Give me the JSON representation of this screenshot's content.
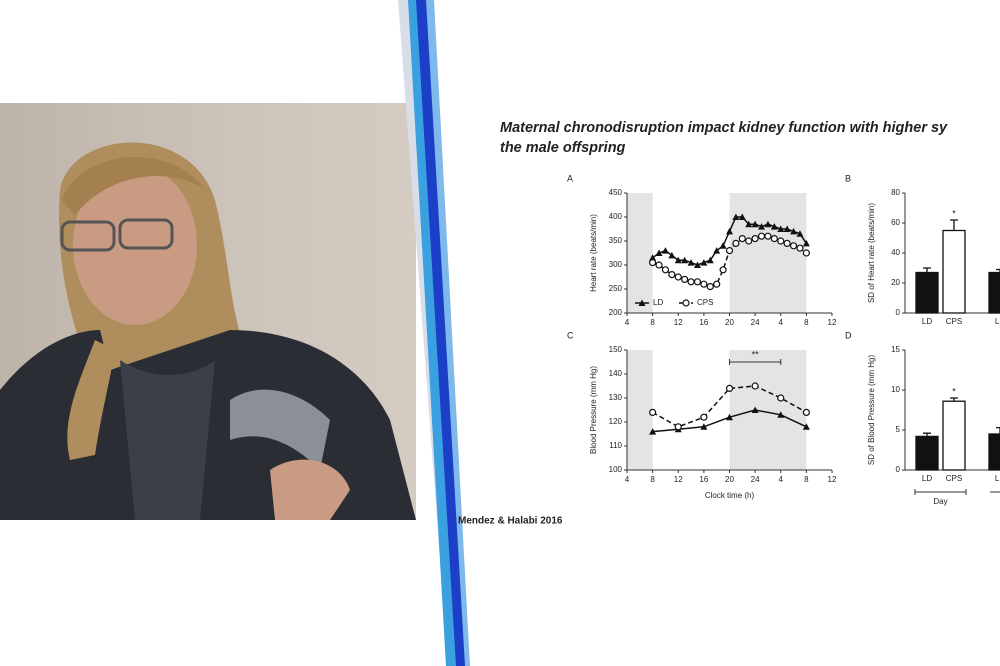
{
  "slide": {
    "title_line1": "Maternal chronodisruption impact kidney function with higher sy",
    "title_line2": "the male offspring",
    "citation": "Mendez & Halabi 2016"
  },
  "chart_data": [
    {
      "type": "line",
      "panel": "A",
      "y_label": "Heart rate (beats/min)",
      "legend": "lower left",
      "x": [
        8,
        9,
        10,
        11,
        12,
        13,
        14,
        15,
        16,
        17,
        18,
        19,
        20,
        21,
        22,
        23,
        24,
        25,
        26,
        27,
        28,
        29,
        30,
        31,
        32
      ],
      "xlim": [
        4,
        36
      ],
      "xticks": [
        4,
        8,
        12,
        16,
        20,
        24,
        {
          "value": 28,
          "label": "4"
        },
        {
          "value": 32,
          "label": "8"
        },
        {
          "value": 36,
          "label": "12"
        }
      ],
      "ylim": [
        200,
        450
      ],
      "yticks": [
        200,
        250,
        300,
        350,
        400,
        450
      ],
      "shaded_ranges": [
        [
          4,
          8
        ],
        [
          20,
          32
        ]
      ],
      "series": [
        {
          "name": "LD",
          "color": "#111111",
          "marker": "triangle",
          "line_style": "solid",
          "values": [
            315,
            325,
            330,
            320,
            310,
            310,
            305,
            300,
            305,
            310,
            330,
            340,
            370,
            400,
            400,
            385,
            385,
            380,
            385,
            380,
            375,
            375,
            370,
            365,
            345
          ]
        },
        {
          "name": "CPS",
          "color": "#111111",
          "marker": "circle",
          "line_style": "dashed",
          "values": [
            305,
            300,
            290,
            280,
            275,
            270,
            265,
            265,
            260,
            255,
            260,
            290,
            330,
            345,
            355,
            350,
            355,
            360,
            360,
            355,
            350,
            345,
            340,
            335,
            325
          ]
        }
      ]
    },
    {
      "type": "bar",
      "panel": "B",
      "y_label": "SD of Heart rate (beats/min)",
      "categories": [
        "LD",
        "CPS",
        "LD"
      ],
      "values": [
        27,
        55,
        27
      ],
      "errors": [
        3,
        7,
        2
      ],
      "colors": [
        "#111111",
        "#ffffff",
        "#111111"
      ],
      "sig_labels": [
        null,
        "*",
        null
      ],
      "ylim": [
        0,
        80
      ],
      "yticks": [
        0,
        20,
        40,
        60,
        80
      ]
    },
    {
      "type": "line",
      "panel": "C",
      "y_label": "Blood Pressure (mm Hg)",
      "x_label": "Clock time (h)",
      "x": [
        8,
        12,
        16,
        20,
        24,
        28,
        32
      ],
      "xlim": [
        4,
        36
      ],
      "xticks": [
        4,
        8,
        12,
        16,
        20,
        24,
        {
          "value": 28,
          "label": "4"
        },
        {
          "value": 32,
          "label": "8"
        },
        {
          "value": 36,
          "label": "12"
        }
      ],
      "ylim": [
        100,
        150
      ],
      "yticks": [
        100,
        110,
        120,
        130,
        140,
        150
      ],
      "shaded_ranges": [
        [
          4,
          8
        ],
        [
          20,
          32
        ]
      ],
      "annotation": {
        "text": "**",
        "x_range": [
          20,
          28
        ],
        "y": 145
      },
      "series": [
        {
          "name": "LD",
          "color": "#111111",
          "marker": "triangle",
          "line_style": "solid",
          "values": [
            116,
            117,
            118,
            122,
            125,
            123,
            118
          ]
        },
        {
          "name": "CPS",
          "color": "#111111",
          "marker": "circle",
          "line_style": "dashed",
          "values": [
            124,
            118,
            122,
            134,
            135,
            130,
            124
          ]
        }
      ]
    },
    {
      "type": "bar",
      "panel": "D",
      "y_label": "SD of Blood Pressure (mm Hg)",
      "categories": [
        "LD",
        "CPS",
        "LD"
      ],
      "values": [
        4.2,
        8.6,
        4.5
      ],
      "errors": [
        0.4,
        0.4,
        0.8
      ],
      "colors": [
        "#111111",
        "#ffffff",
        "#111111"
      ],
      "sig_labels": [
        null,
        "*",
        null
      ],
      "group_label": "Day",
      "ylim": [
        0,
        15
      ],
      "yticks": [
        0,
        5,
        10,
        15
      ]
    }
  ]
}
